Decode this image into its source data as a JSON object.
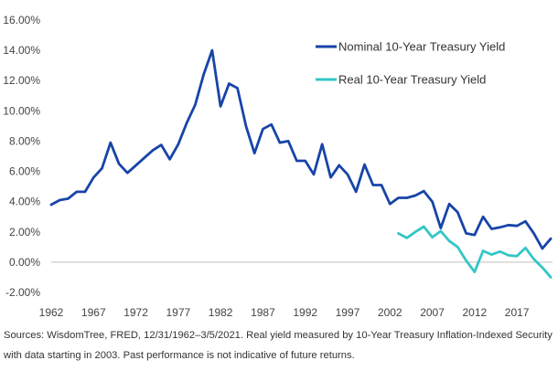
{
  "chart_data": {
    "type": "line",
    "title": "",
    "xlabel": "",
    "ylabel": "",
    "xlim": [
      1962,
      2021.2
    ],
    "ylim": [
      -2,
      16
    ],
    "grid": false,
    "legend_position": "top-right",
    "x_tick_labels": [
      "1962",
      "1967",
      "1972",
      "1977",
      "1982",
      "1987",
      "1992",
      "1997",
      "2002",
      "2007",
      "2012",
      "2017"
    ],
    "y_tick_labels": [
      "-2.00%",
      "0.00%",
      "2.00%",
      "4.00%",
      "6.00%",
      "8.00%",
      "10.00%",
      "12.00%",
      "14.00%",
      "16.00%"
    ],
    "series": [
      {
        "name": "Nominal 10-Year Treasury Yield",
        "color": "#1744a8",
        "x": [
          1962,
          1963,
          1964,
          1965,
          1966,
          1967,
          1968,
          1969,
          1970,
          1971,
          1972,
          1973,
          1974,
          1975,
          1976,
          1977,
          1978,
          1979,
          1980,
          1981,
          1982,
          1983,
          1984,
          1985,
          1986,
          1987,
          1988,
          1989,
          1990,
          1991,
          1992,
          1993,
          1994,
          1995,
          1996,
          1997,
          1998,
          1999,
          2000,
          2001,
          2002,
          2003,
          2004,
          2005,
          2006,
          2007,
          2008,
          2009,
          2010,
          2011,
          2012,
          2013,
          2014,
          2015,
          2016,
          2017,
          2018,
          2019,
          2020,
          2021
        ],
        "values": [
          3.8,
          4.1,
          4.2,
          4.65,
          4.65,
          5.6,
          6.2,
          7.9,
          6.5,
          5.9,
          6.4,
          6.9,
          7.4,
          7.75,
          6.8,
          7.8,
          9.2,
          10.4,
          12.4,
          14.0,
          10.3,
          11.8,
          11.5,
          9.0,
          7.2,
          8.8,
          9.1,
          7.9,
          8.0,
          6.7,
          6.7,
          5.8,
          7.8,
          5.6,
          6.4,
          5.8,
          4.65,
          6.45,
          5.1,
          5.1,
          3.85,
          4.25,
          4.25,
          4.4,
          4.7,
          4.0,
          2.25,
          3.85,
          3.3,
          1.9,
          1.8,
          3.0,
          2.2,
          2.3,
          2.45,
          2.4,
          2.7,
          1.9,
          0.9,
          1.55
        ]
      },
      {
        "name": "Real 10-Year Treasury Yield",
        "color": "#33c6c6",
        "x": [
          2003,
          2004,
          2005,
          2006,
          2007,
          2008,
          2009,
          2010,
          2011,
          2012,
          2013,
          2014,
          2015,
          2016,
          2017,
          2018,
          2019,
          2020,
          2021
        ],
        "values": [
          1.9,
          1.6,
          2.0,
          2.35,
          1.65,
          2.05,
          1.4,
          1.0,
          0.1,
          -0.65,
          0.75,
          0.5,
          0.7,
          0.45,
          0.4,
          0.95,
          0.2,
          -0.35,
          -1.0
        ]
      }
    ]
  },
  "source_note": "Sources: WisdomTree, FRED, 12/31/1962–3/5/2021. Real yield measured by 10-Year Treasury Inflation-Indexed Security with data starting in 2003. Past performance is not indicative of future returns."
}
